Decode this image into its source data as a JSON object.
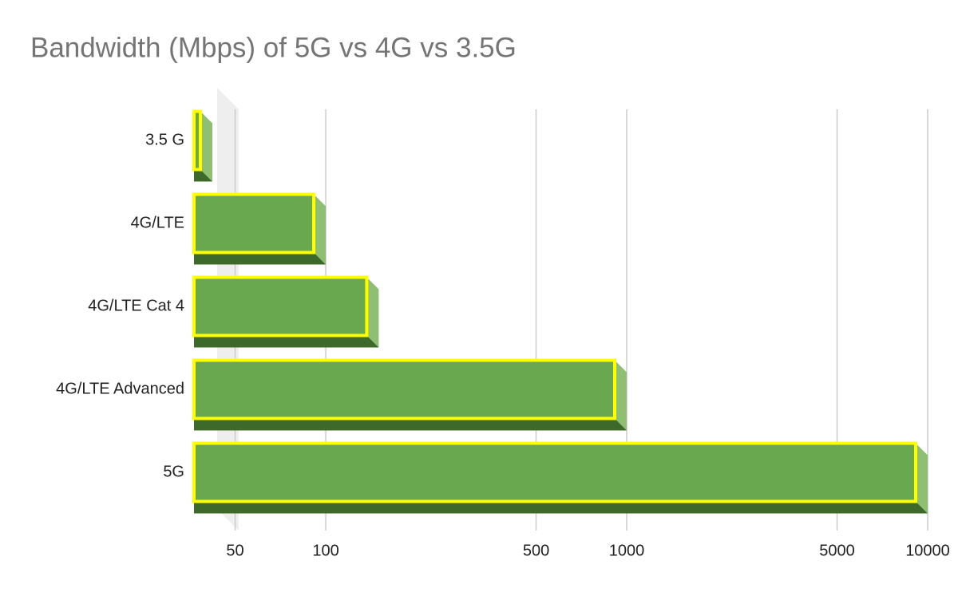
{
  "chart_data": {
    "type": "bar",
    "title": "Bandwidth (Mbps) of 5G vs 4G vs 3.5G",
    "categories": [
      "3.5 G",
      "4G/LTE",
      "4G/LTE Cat 4",
      "4G/LTE Advanced",
      "5G"
    ],
    "values": [
      42,
      100,
      150,
      1000,
      10000
    ],
    "color": "#6aa84f",
    "border_color": "#ffff00",
    "log_scale": true,
    "xlim": [
      40,
      10000
    ],
    "xticks": [
      50,
      100,
      500,
      1000,
      5000,
      10000
    ],
    "grid": true
  }
}
